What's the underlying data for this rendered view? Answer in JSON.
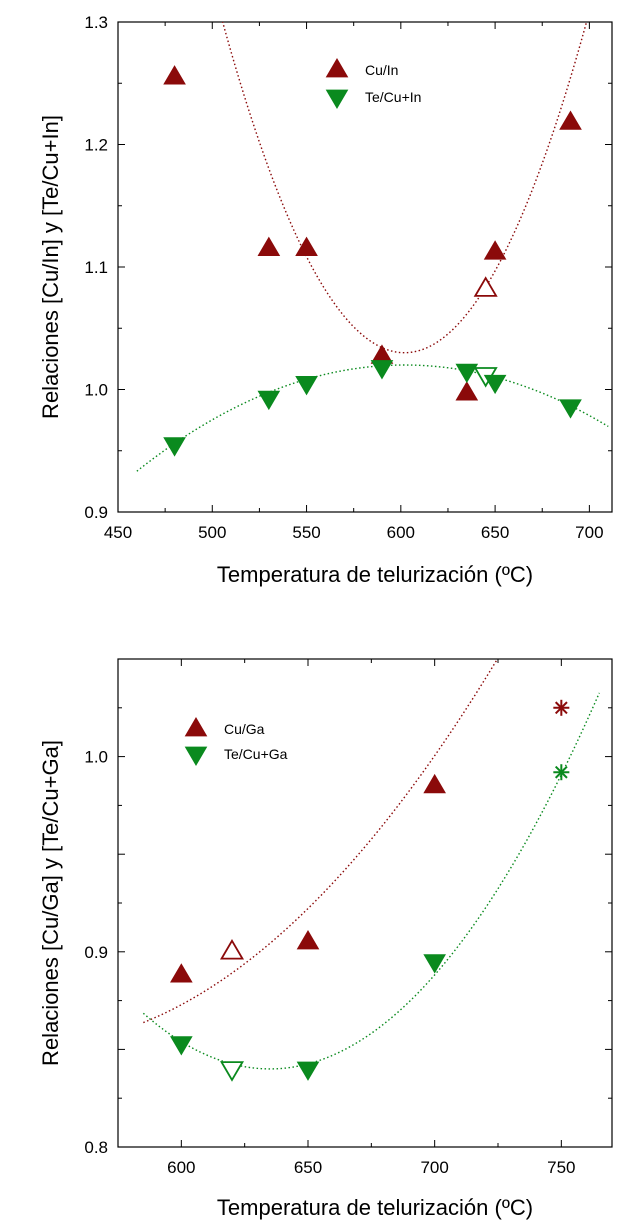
{
  "colors": {
    "red": "#8b0a0a",
    "green": "#0a8a1e",
    "axis": "#000000"
  },
  "chart_data": [
    {
      "type": "scatter",
      "xlabel": "Temperatura de telurización  (ºC)",
      "ylabel": "Relaciones [Cu/In] y [Te/Cu+In]",
      "xlim": [
        450,
        712
      ],
      "ylim": [
        0.9,
        1.3
      ],
      "xticks": [
        450,
        500,
        550,
        600,
        650,
        700
      ],
      "yticks": [
        0.9,
        1.0,
        1.1,
        1.2,
        1.3
      ],
      "xtick_labels": [
        "450",
        "500",
        "550",
        "600",
        "650",
        "700"
      ],
      "ytick_labels": [
        "0.9",
        "1.0",
        "1.1",
        "1.2",
        "1.3"
      ],
      "legend_position": "top-center",
      "series": [
        {
          "name": "Cu/In",
          "color": "red",
          "marker": "triangle-up",
          "points": [
            {
              "x": 480,
              "y": 1.255,
              "style": "filled"
            },
            {
              "x": 530,
              "y": 1.115,
              "style": "filled"
            },
            {
              "x": 550,
              "y": 1.115,
              "style": "filled"
            },
            {
              "x": 590,
              "y": 1.027,
              "style": "filled"
            },
            {
              "x": 635,
              "y": 0.997,
              "style": "filled"
            },
            {
              "x": 645,
              "y": 1.082,
              "style": "open"
            },
            {
              "x": 650,
              "y": 1.112,
              "style": "filled"
            },
            {
              "x": 690,
              "y": 1.218,
              "style": "filled"
            }
          ],
          "fit": {
            "type": "quadratic",
            "vertex_x": 602,
            "vertex_y": 1.03,
            "a": 2.9e-05,
            "x_range": [
              465,
              712
            ]
          }
        },
        {
          "name": "Te/Cu+In",
          "color": "green",
          "marker": "triangle-down",
          "points": [
            {
              "x": 480,
              "y": 0.955,
              "style": "filled"
            },
            {
              "x": 530,
              "y": 0.993,
              "style": "filled"
            },
            {
              "x": 550,
              "y": 1.005,
              "style": "filled"
            },
            {
              "x": 590,
              "y": 1.018,
              "style": "filled"
            },
            {
              "x": 635,
              "y": 1.015,
              "style": "filled"
            },
            {
              "x": 645,
              "y": 1.012,
              "style": "open"
            },
            {
              "x": 650,
              "y": 1.006,
              "style": "filled"
            },
            {
              "x": 690,
              "y": 0.986,
              "style": "filled"
            }
          ],
          "fit": {
            "type": "quadratic",
            "vertex_x": 602,
            "vertex_y": 1.02,
            "a": -4.3e-06,
            "x_range": [
              460,
              710
            ]
          }
        }
      ]
    },
    {
      "type": "scatter",
      "xlabel": "Temperatura de telurización  (ºC)",
      "ylabel": "Relaciones [Cu/Ga] y [Te/Cu+Ga]",
      "xlim": [
        575,
        770
      ],
      "ylim": [
        0.8,
        1.05
      ],
      "xticks": [
        600,
        650,
        700,
        750
      ],
      "yticks": [
        0.8,
        0.85,
        0.9,
        0.95,
        1.0
      ],
      "xtick_labels": [
        "600",
        "650",
        "700",
        "750"
      ],
      "ytick_labels": [
        "0.8",
        "",
        "0.9",
        "",
        "1.0"
      ],
      "legend_position": "top-left",
      "series": [
        {
          "name": "Cu/Ga",
          "color": "red",
          "marker": "triangle-up",
          "points": [
            {
              "x": 600,
              "y": 0.888,
              "style": "filled"
            },
            {
              "x": 620,
              "y": 0.9,
              "style": "open"
            },
            {
              "x": 650,
              "y": 0.905,
              "style": "filled"
            },
            {
              "x": 700,
              "y": 0.985,
              "style": "filled"
            },
            {
              "x": 750,
              "y": 1.025,
              "style": "star"
            }
          ],
          "fit": {
            "type": "quadratic",
            "vertex_x": 540,
            "vertex_y": 0.852,
            "a": 5.8e-06,
            "x_range": [
              585,
              765
            ]
          }
        },
        {
          "name": "Te/Cu+Ga",
          "color": "green",
          "marker": "triangle-down",
          "points": [
            {
              "x": 600,
              "y": 0.853,
              "style": "filled"
            },
            {
              "x": 620,
              "y": 0.84,
              "style": "open"
            },
            {
              "x": 650,
              "y": 0.84,
              "style": "filled"
            },
            {
              "x": 700,
              "y": 0.895,
              "style": "filled"
            },
            {
              "x": 750,
              "y": 0.992,
              "style": "star"
            }
          ],
          "fit": {
            "type": "quadratic",
            "vertex_x": 635,
            "vertex_y": 0.84,
            "a": 1.14e-05,
            "x_range": [
              585,
              765
            ]
          }
        }
      ]
    }
  ]
}
